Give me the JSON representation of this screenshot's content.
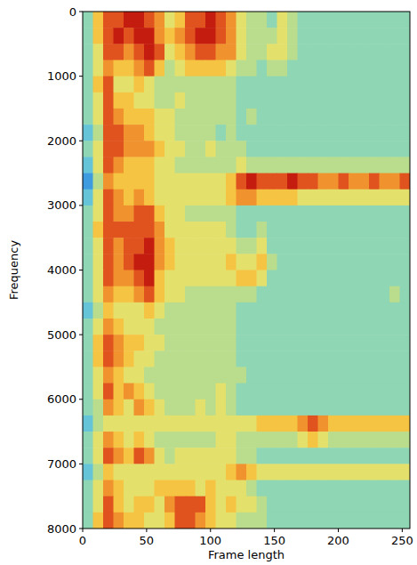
{
  "chart_data": {
    "type": "heatmap",
    "xlabel": "Frame length",
    "ylabel": "Frequency",
    "xlim": [
      0,
      256
    ],
    "ylim": [
      8000,
      0
    ],
    "xticks": [
      0,
      50,
      100,
      150,
      200,
      250
    ],
    "yticks": [
      0,
      1000,
      2000,
      3000,
      4000,
      5000,
      6000,
      7000,
      8000
    ],
    "zlim": [
      0,
      9
    ],
    "x_bins": [
      0,
      8,
      16,
      24,
      32,
      40,
      48,
      56,
      64,
      72,
      80,
      88,
      96,
      104,
      112,
      120,
      128,
      136,
      144,
      152,
      160,
      168,
      176,
      184,
      192,
      200,
      208,
      216,
      224,
      232,
      240,
      248,
      256
    ],
    "y_bins": [
      0,
      250,
      500,
      750,
      1000,
      1250,
      1500,
      1750,
      2000,
      2250,
      2500,
      2750,
      3000,
      3250,
      3500,
      3750,
      4000,
      4250,
      4500,
      4750,
      5000,
      5250,
      5500,
      5750,
      6000,
      6250,
      6500,
      6750,
      7000,
      7250,
      7500,
      7750,
      8000
    ],
    "cells": [
      [
        3,
        6,
        8,
        8,
        9,
        9,
        8,
        7,
        5,
        6,
        8,
        8,
        9,
        8,
        7,
        5,
        4,
        4,
        3,
        5,
        4,
        3,
        3,
        3,
        3,
        3,
        3,
        3,
        3,
        3,
        3,
        3
      ],
      [
        3,
        6,
        8,
        9,
        8,
        9,
        9,
        7,
        6,
        7,
        8,
        9,
        9,
        8,
        7,
        5,
        4,
        4,
        4,
        5,
        4,
        3,
        3,
        3,
        3,
        3,
        3,
        3,
        3,
        3,
        3,
        3
      ],
      [
        3,
        5,
        8,
        8,
        7,
        8,
        9,
        8,
        5,
        6,
        7,
        8,
        8,
        7,
        7,
        5,
        4,
        4,
        5,
        5,
        4,
        3,
        3,
        3,
        3,
        3,
        3,
        3,
        3,
        3,
        3,
        3
      ],
      [
        3,
        5,
        7,
        6,
        6,
        7,
        8,
        6,
        4,
        5,
        6,
        6,
        6,
        6,
        5,
        4,
        4,
        3,
        4,
        4,
        3,
        3,
        3,
        3,
        3,
        3,
        3,
        3,
        3,
        3,
        3,
        3
      ],
      [
        3,
        6,
        8,
        5,
        5,
        6,
        5,
        4,
        4,
        4,
        4,
        4,
        4,
        4,
        4,
        3,
        3,
        3,
        3,
        3,
        3,
        3,
        3,
        3,
        3,
        3,
        3,
        3,
        3,
        3,
        3,
        3
      ],
      [
        3,
        5,
        8,
        6,
        6,
        5,
        5,
        4,
        4,
        5,
        4,
        4,
        4,
        4,
        4,
        3,
        3,
        3,
        3,
        3,
        3,
        3,
        3,
        3,
        3,
        3,
        3,
        3,
        3,
        3,
        3,
        3
      ],
      [
        3,
        5,
        8,
        7,
        6,
        6,
        6,
        5,
        5,
        4,
        4,
        4,
        4,
        4,
        4,
        3,
        4,
        3,
        3,
        3,
        3,
        3,
        3,
        3,
        3,
        3,
        3,
        3,
        3,
        3,
        3,
        3
      ],
      [
        2,
        4,
        8,
        8,
        7,
        7,
        6,
        5,
        5,
        4,
        4,
        4,
        4,
        3,
        4,
        3,
        3,
        3,
        3,
        3,
        3,
        3,
        3,
        3,
        3,
        3,
        3,
        3,
        3,
        3,
        3,
        3
      ],
      [
        3,
        5,
        8,
        8,
        7,
        7,
        7,
        6,
        5,
        5,
        4,
        4,
        5,
        4,
        4,
        4,
        3,
        3,
        3,
        3,
        3,
        3,
        3,
        3,
        3,
        3,
        3,
        3,
        3,
        3,
        3,
        3
      ],
      [
        2,
        5,
        8,
        7,
        6,
        6,
        6,
        5,
        5,
        4,
        4,
        4,
        4,
        4,
        4,
        5,
        4,
        4,
        4,
        4,
        4,
        4,
        4,
        4,
        4,
        4,
        4,
        4,
        4,
        4,
        4,
        4
      ],
      [
        1,
        4,
        7,
        6,
        6,
        6,
        6,
        5,
        5,
        5,
        5,
        5,
        5,
        5,
        6,
        8,
        9,
        8,
        8,
        8,
        9,
        8,
        8,
        7,
        7,
        8,
        7,
        7,
        8,
        7,
        7,
        8
      ],
      [
        2,
        5,
        8,
        7,
        6,
        7,
        6,
        5,
        5,
        5,
        5,
        5,
        5,
        5,
        6,
        7,
        7,
        6,
        6,
        6,
        6,
        5,
        5,
        5,
        5,
        5,
        5,
        5,
        5,
        5,
        5,
        5
      ],
      [
        3,
        5,
        8,
        7,
        7,
        8,
        8,
        6,
        5,
        5,
        4,
        4,
        4,
        4,
        4,
        3,
        3,
        3,
        3,
        3,
        3,
        3,
        3,
        3,
        3,
        3,
        3,
        3,
        3,
        3,
        3,
        3
      ],
      [
        3,
        6,
        8,
        8,
        8,
        8,
        8,
        7,
        5,
        5,
        5,
        5,
        5,
        5,
        4,
        3,
        3,
        4,
        3,
        3,
        3,
        3,
        3,
        3,
        3,
        3,
        3,
        3,
        3,
        3,
        3,
        3
      ],
      [
        3,
        5,
        8,
        7,
        8,
        8,
        9,
        7,
        6,
        5,
        5,
        5,
        5,
        5,
        5,
        4,
        4,
        5,
        3,
        3,
        3,
        3,
        3,
        3,
        3,
        3,
        3,
        3,
        3,
        3,
        3,
        3
      ],
      [
        3,
        5,
        8,
        7,
        8,
        9,
        9,
        7,
        6,
        5,
        5,
        5,
        5,
        5,
        6,
        5,
        5,
        6,
        4,
        3,
        3,
        3,
        3,
        3,
        3,
        3,
        3,
        3,
        3,
        3,
        3,
        3
      ],
      [
        3,
        5,
        8,
        7,
        7,
        8,
        9,
        6,
        5,
        5,
        5,
        5,
        5,
        5,
        5,
        6,
        6,
        5,
        3,
        3,
        3,
        3,
        3,
        3,
        3,
        3,
        3,
        3,
        3,
        3,
        3,
        3
      ],
      [
        3,
        5,
        7,
        6,
        6,
        7,
        8,
        6,
        5,
        5,
        4,
        4,
        4,
        4,
        4,
        4,
        4,
        3,
        3,
        3,
        3,
        3,
        3,
        3,
        3,
        3,
        3,
        3,
        3,
        3,
        4,
        3
      ],
      [
        2,
        4,
        6,
        5,
        5,
        5,
        6,
        5,
        4,
        4,
        4,
        4,
        4,
        4,
        4,
        3,
        3,
        3,
        3,
        3,
        3,
        3,
        3,
        3,
        3,
        3,
        3,
        3,
        3,
        3,
        3,
        3
      ],
      [
        3,
        5,
        7,
        6,
        5,
        5,
        5,
        4,
        4,
        4,
        4,
        4,
        4,
        4,
        4,
        3,
        3,
        3,
        3,
        3,
        3,
        3,
        3,
        3,
        3,
        3,
        3,
        3,
        3,
        3,
        3,
        3
      ],
      [
        3,
        6,
        8,
        7,
        6,
        6,
        5,
        5,
        4,
        4,
        4,
        4,
        4,
        4,
        4,
        3,
        3,
        3,
        3,
        3,
        3,
        3,
        3,
        3,
        3,
        3,
        3,
        3,
        3,
        3,
        3,
        3
      ],
      [
        3,
        6,
        8,
        7,
        6,
        5,
        5,
        4,
        4,
        4,
        4,
        4,
        4,
        4,
        4,
        3,
        3,
        3,
        3,
        3,
        3,
        3,
        3,
        3,
        3,
        3,
        3,
        3,
        3,
        3,
        3,
        3
      ],
      [
        3,
        5,
        7,
        6,
        5,
        5,
        4,
        4,
        4,
        4,
        4,
        4,
        4,
        4,
        4,
        4,
        3,
        3,
        3,
        3,
        3,
        3,
        3,
        3,
        3,
        3,
        3,
        3,
        3,
        3,
        3,
        3
      ],
      [
        3,
        5,
        8,
        6,
        7,
        6,
        5,
        4,
        4,
        4,
        4,
        4,
        4,
        5,
        4,
        3,
        3,
        3,
        3,
        3,
        3,
        3,
        3,
        3,
        3,
        3,
        3,
        3,
        3,
        3,
        3,
        3
      ],
      [
        3,
        4,
        7,
        6,
        5,
        7,
        6,
        5,
        4,
        4,
        4,
        5,
        4,
        5,
        4,
        3,
        3,
        3,
        3,
        3,
        3,
        3,
        3,
        3,
        3,
        3,
        3,
        3,
        3,
        3,
        3,
        3
      ],
      [
        2,
        4,
        5,
        5,
        5,
        5,
        5,
        5,
        5,
        5,
        5,
        5,
        5,
        5,
        5,
        5,
        5,
        6,
        6,
        6,
        6,
        7,
        8,
        7,
        6,
        6,
        6,
        6,
        6,
        6,
        6,
        6
      ],
      [
        3,
        5,
        7,
        6,
        5,
        6,
        5,
        4,
        4,
        4,
        4,
        4,
        4,
        5,
        5,
        4,
        4,
        4,
        4,
        4,
        4,
        5,
        6,
        5,
        4,
        4,
        4,
        4,
        4,
        4,
        4,
        4
      ],
      [
        3,
        5,
        8,
        7,
        6,
        8,
        7,
        5,
        4,
        5,
        5,
        5,
        5,
        5,
        5,
        4,
        4,
        3,
        3,
        3,
        3,
        3,
        3,
        3,
        3,
        3,
        3,
        3,
        3,
        3,
        3,
        3
      ],
      [
        2,
        4,
        6,
        5,
        5,
        5,
        5,
        5,
        5,
        5,
        5,
        5,
        5,
        5,
        6,
        7,
        6,
        5,
        5,
        5,
        5,
        5,
        5,
        5,
        5,
        5,
        5,
        5,
        5,
        5,
        5,
        5
      ],
      [
        3,
        5,
        7,
        6,
        5,
        5,
        5,
        6,
        6,
        6,
        6,
        5,
        6,
        5,
        5,
        5,
        4,
        3,
        3,
        3,
        3,
        3,
        3,
        3,
        3,
        3,
        3,
        3,
        3,
        3,
        3,
        3
      ],
      [
        3,
        5,
        8,
        6,
        5,
        6,
        6,
        5,
        7,
        8,
        8,
        8,
        6,
        5,
        6,
        5,
        5,
        4,
        3,
        3,
        3,
        3,
        3,
        3,
        3,
        3,
        3,
        3,
        3,
        3,
        3,
        3
      ],
      [
        3,
        6,
        8,
        7,
        6,
        6,
        5,
        5,
        6,
        8,
        8,
        7,
        6,
        5,
        5,
        4,
        4,
        4,
        3,
        3,
        3,
        3,
        3,
        3,
        3,
        3,
        3,
        3,
        3,
        3,
        3,
        3
      ]
    ]
  }
}
